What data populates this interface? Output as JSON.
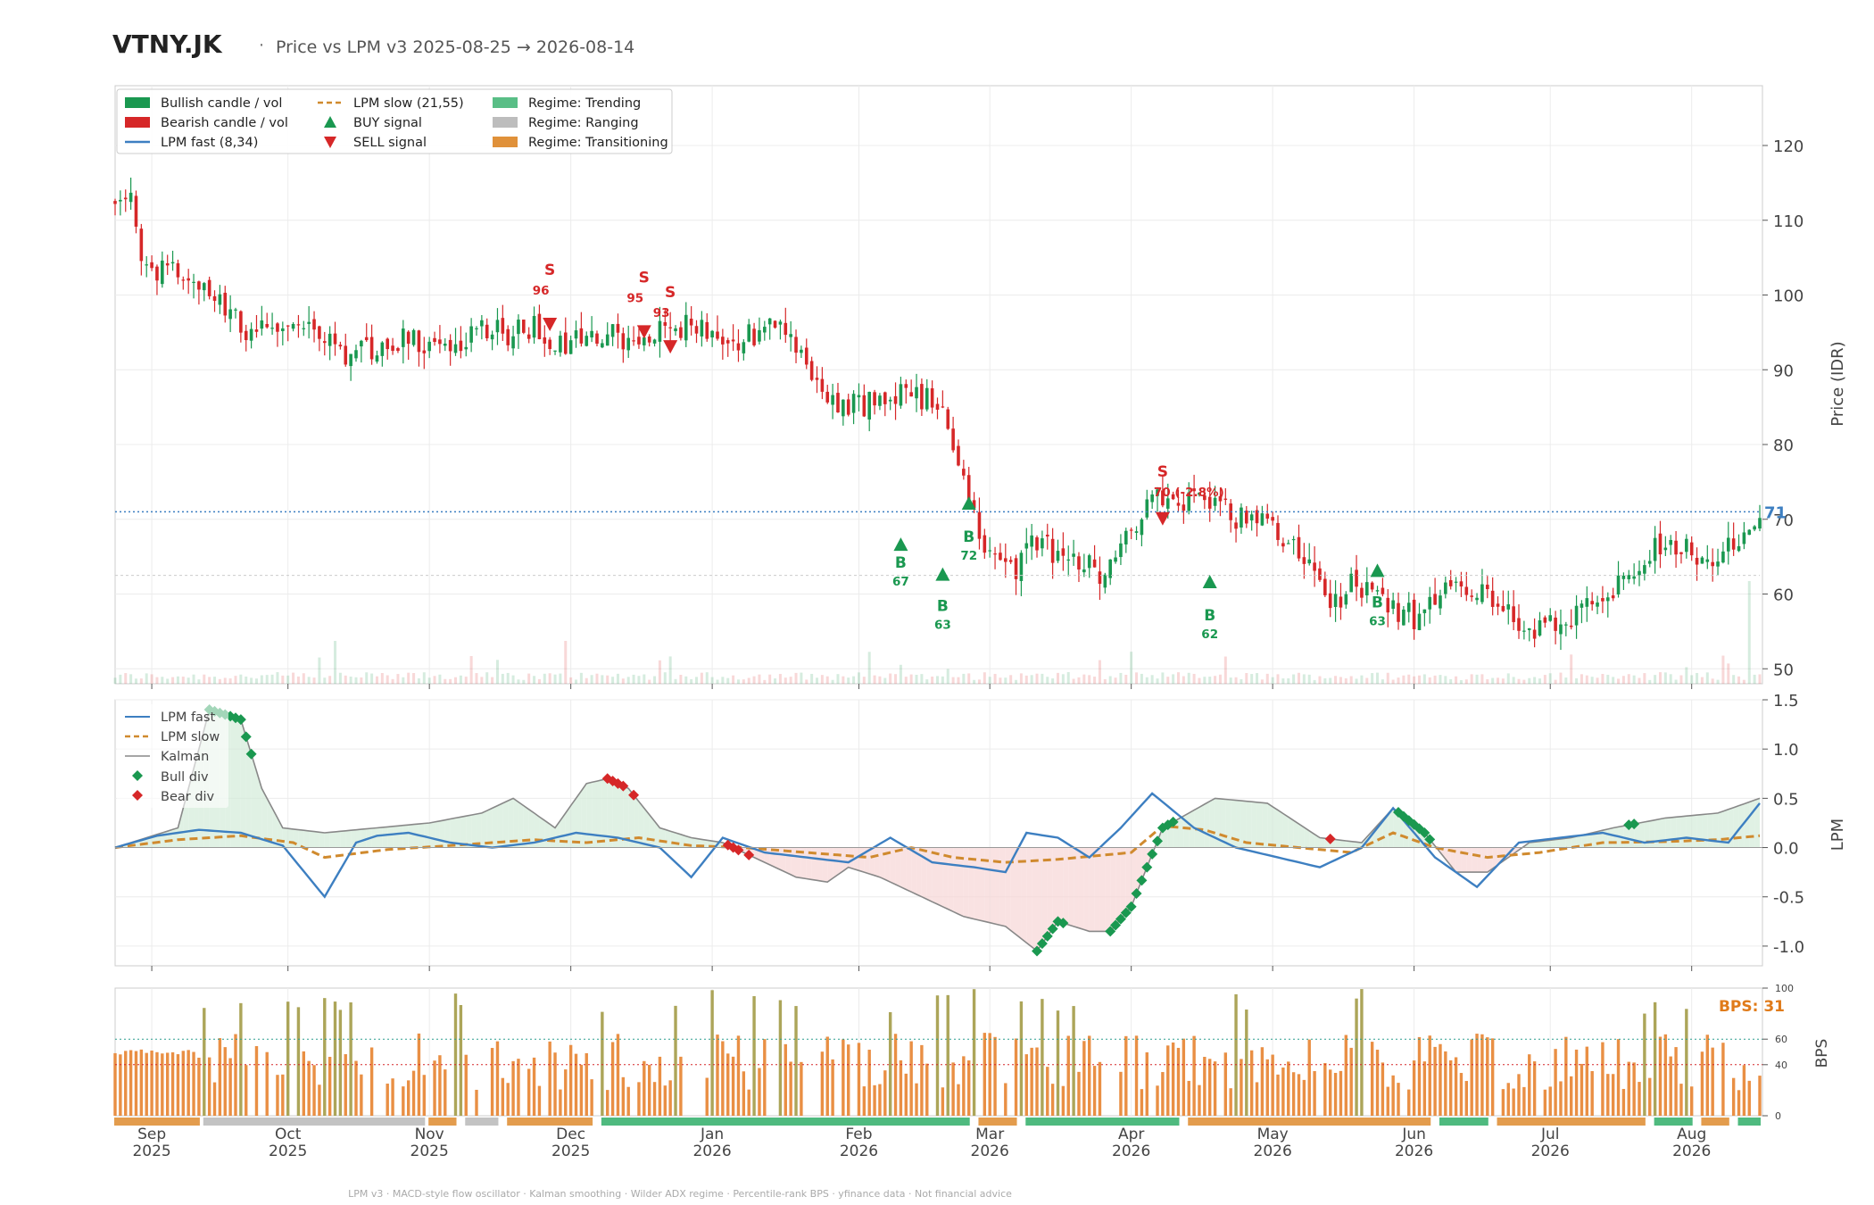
{
  "header": {
    "ticker": "VTNY.JK",
    "separator": "·",
    "subtitle": "Price vs LPM v3  2025-08-25 → 2026-08-14"
  },
  "footer": {
    "text": "LPM v3  ·  MACD-style flow oscillator  ·  Kalman smoothing  ·  Wilder ADX regime  ·  Percentile-rank BPS  ·  yfinance data  ·  Not financial advice"
  },
  "colors": {
    "bull": "#1a9850",
    "bear": "#d62728",
    "fast": "#3d7fc1",
    "slow": "#d08a2e",
    "kalman": "#888888",
    "trending": "#3cb371",
    "ranging": "#bdbdbd",
    "transitioning": "#e0913a",
    "bps_bar": "#e8893a",
    "bps_olive": "#a8a050"
  },
  "legend": {
    "bull": "Bullish candle / vol",
    "bear": "Bearish candle / vol",
    "fast": "LPM fast (8,34)",
    "slow": "LPM slow (21,55)",
    "buy": "BUY signal",
    "sell": "SELL signal",
    "trending": "Regime: Trending",
    "ranging": "Regime: Ranging",
    "transitioning": "Regime: Transitioning"
  },
  "legend2": {
    "fast": "LPM fast",
    "slow": "LPM slow",
    "kalman": "Kalman",
    "bull_div": "Bull div",
    "bear_div": "Bear div"
  },
  "chart_data": [
    {
      "type": "candlestick",
      "title": "Price vs LPM v3  2025-08-25 → 2026-08-14",
      "ylabel": "Price (IDR)",
      "ylim": [
        48,
        128
      ],
      "yticks": [
        50,
        60,
        70,
        80,
        90,
        100,
        110,
        120
      ],
      "last_price": 71,
      "last_price_label": "71",
      "reference_line": 62.5,
      "price_anchors": [
        [
          0,
          113
        ],
        [
          3,
          112
        ],
        [
          6,
          103
        ],
        [
          10,
          104
        ],
        [
          14,
          102
        ],
        [
          18,
          100
        ],
        [
          22,
          97
        ],
        [
          26,
          95
        ],
        [
          30,
          96
        ],
        [
          35,
          95
        ],
        [
          40,
          94
        ],
        [
          45,
          92
        ],
        [
          50,
          93
        ],
        [
          55,
          94
        ],
        [
          60,
          93
        ],
        [
          65,
          94
        ],
        [
          70,
          95
        ],
        [
          75,
          95
        ],
        [
          78,
          96
        ],
        [
          82,
          95
        ],
        [
          86,
          93
        ],
        [
          90,
          94
        ],
        [
          94,
          95
        ],
        [
          98,
          94
        ],
        [
          102,
          95
        ],
        [
          106,
          95
        ],
        [
          110,
          96
        ],
        [
          115,
          95
        ],
        [
          120,
          94
        ],
        [
          125,
          96
        ],
        [
          128,
          94
        ],
        [
          132,
          91
        ],
        [
          135,
          88
        ],
        [
          138,
          86
        ],
        [
          142,
          85
        ],
        [
          146,
          86
        ],
        [
          150,
          87
        ],
        [
          155,
          86
        ],
        [
          158,
          84
        ],
        [
          160,
          80
        ],
        [
          162,
          76
        ],
        [
          164,
          70
        ],
        [
          166,
          66
        ],
        [
          168,
          65
        ],
        [
          170,
          64
        ],
        [
          172,
          63
        ],
        [
          174,
          66
        ],
        [
          177,
          67
        ],
        [
          180,
          65
        ],
        [
          183,
          64
        ],
        [
          186,
          64
        ],
        [
          188,
          62
        ],
        [
          190,
          63
        ],
        [
          193,
          67
        ],
        [
          196,
          71
        ],
        [
          198,
          73
        ],
        [
          200,
          73
        ],
        [
          204,
          72
        ],
        [
          208,
          73
        ],
        [
          212,
          71
        ],
        [
          215,
          70
        ],
        [
          218,
          69
        ],
        [
          221,
          70
        ],
        [
          224,
          67
        ],
        [
          227,
          64
        ],
        [
          230,
          61
        ],
        [
          233,
          59
        ],
        [
          236,
          61
        ],
        [
          239,
          61
        ],
        [
          242,
          60
        ],
        [
          245,
          58
        ],
        [
          248,
          57
        ],
        [
          251,
          59
        ],
        [
          254,
          60
        ],
        [
          257,
          61
        ],
        [
          260,
          61
        ],
        [
          263,
          60
        ],
        [
          266,
          58
        ],
        [
          269,
          56
        ],
        [
          272,
          55
        ],
        [
          275,
          56
        ],
        [
          278,
          57
        ],
        [
          281,
          58
        ],
        [
          284,
          59
        ],
        [
          287,
          62
        ],
        [
          290,
          64
        ],
        [
          293,
          66
        ],
        [
          296,
          67
        ],
        [
          299,
          66
        ],
        [
          302,
          65
        ],
        [
          305,
          64
        ],
        [
          308,
          66
        ],
        [
          310,
          67
        ],
        [
          312,
          70
        ],
        [
          314,
          71
        ]
      ],
      "sell_signals": [
        {
          "label": "S",
          "score": "96"
        },
        {
          "label": "S",
          "score": "95"
        },
        {
          "label": "S",
          "score": "93"
        },
        {
          "label": "S",
          "score": "70 (-2.8%)"
        }
      ],
      "buy_signals": [
        {
          "label": "B",
          "score": "67"
        },
        {
          "label": "B",
          "score": "63"
        },
        {
          "label": "B",
          "score": "72"
        },
        {
          "label": "B",
          "score": "62"
        },
        {
          "label": "B",
          "score": "63"
        }
      ]
    },
    {
      "type": "line",
      "ylabel": "LPM",
      "ylim": [
        -1.2,
        1.5
      ],
      "yticks": [
        1.5,
        1.0,
        0.5,
        0.0,
        -0.5,
        -1.0
      ],
      "series": [
        {
          "name": "LPM fast",
          "x": [
            0,
            8,
            16,
            24,
            32,
            40,
            46,
            50,
            56,
            64,
            72,
            80,
            88,
            96,
            104,
            110,
            116,
            124,
            132,
            140,
            148,
            156,
            164,
            170,
            174,
            180,
            186,
            192,
            198,
            206,
            214,
            222,
            230,
            238,
            244,
            252,
            260,
            268,
            276,
            284,
            292,
            300,
            308,
            314
          ],
          "values": [
            0.0,
            0.12,
            0.18,
            0.15,
            0.02,
            -0.5,
            0.05,
            0.12,
            0.15,
            0.05,
            0.0,
            0.05,
            0.15,
            0.1,
            0.0,
            -0.3,
            0.1,
            -0.05,
            -0.1,
            -0.15,
            0.1,
            -0.15,
            -0.2,
            -0.25,
            0.15,
            0.1,
            -0.1,
            0.2,
            0.55,
            0.2,
            0.0,
            -0.1,
            -0.2,
            0.0,
            0.4,
            -0.1,
            -0.4,
            0.05,
            0.1,
            0.15,
            0.05,
            0.1,
            0.05,
            0.45
          ]
        },
        {
          "name": "LPM slow",
          "x": [
            0,
            12,
            24,
            34,
            40,
            52,
            64,
            80,
            90,
            100,
            110,
            120,
            132,
            144,
            152,
            160,
            170,
            180,
            194,
            200,
            208,
            216,
            226,
            236,
            244,
            252,
            262,
            272,
            284,
            296,
            306,
            314
          ],
          "values": [
            0.0,
            0.08,
            0.12,
            0.05,
            -0.1,
            -0.02,
            0.02,
            0.08,
            0.05,
            0.1,
            0.02,
            0.0,
            -0.05,
            -0.1,
            0.0,
            -0.1,
            -0.15,
            -0.12,
            -0.05,
            0.22,
            0.18,
            0.05,
            0.0,
            -0.05,
            0.15,
            0.0,
            -0.1,
            -0.05,
            0.05,
            0.06,
            0.08,
            0.12
          ]
        },
        {
          "name": "Kalman",
          "x": [
            0,
            12,
            18,
            24,
            28,
            32,
            40,
            50,
            60,
            70,
            76,
            84,
            90,
            94,
            98,
            104,
            110,
            116,
            124,
            130,
            136,
            140,
            146,
            154,
            162,
            170,
            176,
            180,
            186,
            190,
            194,
            200,
            210,
            220,
            230,
            238,
            244,
            250,
            256,
            262,
            270,
            278,
            286,
            296,
            306,
            314
          ],
          "values": [
            0.0,
            0.2,
            1.4,
            1.3,
            0.6,
            0.2,
            0.15,
            0.2,
            0.25,
            0.35,
            0.5,
            0.2,
            0.65,
            0.7,
            0.6,
            0.2,
            0.1,
            0.05,
            -0.15,
            -0.3,
            -0.35,
            -0.2,
            -0.3,
            -0.5,
            -0.7,
            -0.8,
            -1.05,
            -0.75,
            -0.85,
            -0.85,
            -0.6,
            0.2,
            0.5,
            0.45,
            0.1,
            0.05,
            0.4,
            0.15,
            -0.25,
            -0.25,
            0.05,
            0.1,
            0.2,
            0.3,
            0.35,
            0.5
          ]
        }
      ],
      "bull_div_markers": 5,
      "bear_div_markers": 3
    },
    {
      "type": "bar",
      "ylabel": "BPS",
      "ylim": [
        0,
        100
      ],
      "yticks": [
        100,
        60,
        40,
        0
      ],
      "thresholds": [
        60,
        40
      ],
      "last_value_label": "BPS: 31",
      "bars": 314
    }
  ],
  "regime_bands": [
    {
      "start": 0,
      "end": 16,
      "regime": "transitioning"
    },
    {
      "start": 17,
      "end": 59,
      "regime": "ranging"
    },
    {
      "start": 60,
      "end": 65,
      "regime": "transitioning"
    },
    {
      "start": 67,
      "end": 73,
      "regime": "ranging"
    },
    {
      "start": 75,
      "end": 91,
      "regime": "transitioning"
    },
    {
      "start": 93,
      "end": 163,
      "regime": "trending"
    },
    {
      "start": 165,
      "end": 172,
      "regime": "transitioning"
    },
    {
      "start": 174,
      "end": 203,
      "regime": "trending"
    },
    {
      "start": 205,
      "end": 251,
      "regime": "transitioning"
    },
    {
      "start": 253,
      "end": 262,
      "regime": "trending"
    },
    {
      "start": 264,
      "end": 292,
      "regime": "transitioning"
    },
    {
      "start": 294,
      "end": 301,
      "regime": "trending"
    },
    {
      "start": 303,
      "end": 308,
      "regime": "transitioning"
    },
    {
      "start": 310,
      "end": 314,
      "regime": "trending"
    }
  ],
  "xaxis": [
    {
      "m": "Sep",
      "y": "2025",
      "i": 7
    },
    {
      "m": "Oct",
      "y": "2025",
      "i": 33
    },
    {
      "m": "Nov",
      "y": "2025",
      "i": 60
    },
    {
      "m": "Dec",
      "y": "2025",
      "i": 87
    },
    {
      "m": "Jan",
      "y": "2026",
      "i": 114
    },
    {
      "m": "Feb",
      "y": "2026",
      "i": 142
    },
    {
      "m": "Mar",
      "y": "2026",
      "i": 167
    },
    {
      "m": "Apr",
      "y": "2026",
      "i": 194
    },
    {
      "m": "May",
      "y": "2026",
      "i": 221
    },
    {
      "m": "Jun",
      "y": "2026",
      "i": 248
    },
    {
      "m": "Jul",
      "y": "2026",
      "i": 274
    },
    {
      "m": "Aug",
      "y": "2026",
      "i": 301
    }
  ]
}
